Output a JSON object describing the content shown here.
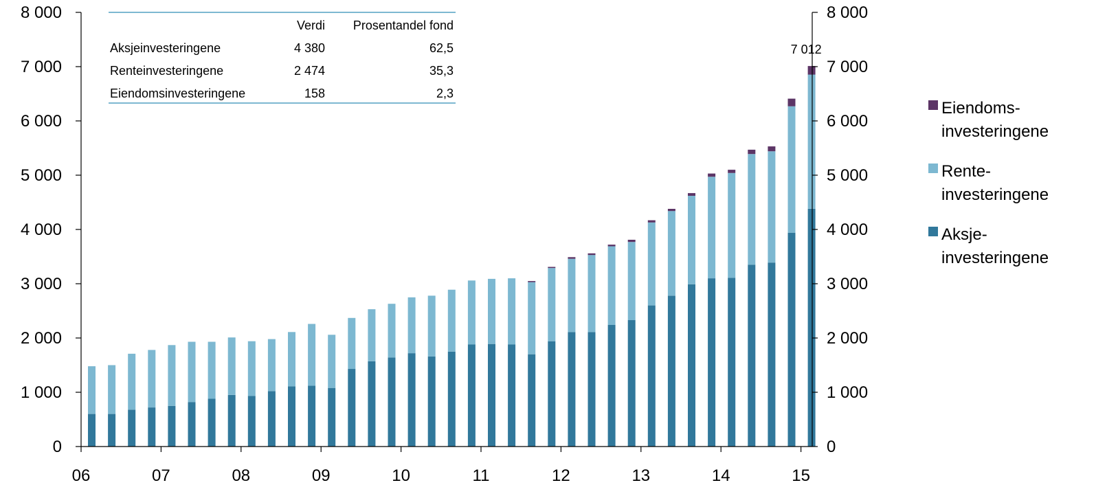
{
  "chart_data": {
    "type": "bar",
    "stacked": true,
    "y_range": [
      0,
      8000
    ],
    "y_ticks": [
      "0",
      "1 000",
      "2 000",
      "3 000",
      "4 000",
      "5 000",
      "6 000",
      "7 000",
      "8 000"
    ],
    "y_right_ticks": [
      "0",
      "1 000",
      "2 000",
      "3 000",
      "4 000",
      "5 000",
      "6 000",
      "7 000",
      "8 000"
    ],
    "x_tick_labels": [
      "06",
      "07",
      "08",
      "09",
      "10",
      "11",
      "12",
      "13",
      "14",
      "15"
    ],
    "x_tick_positions_in_quarters": [
      0,
      4,
      8,
      12,
      16,
      20,
      24,
      28,
      32,
      36
    ],
    "grid": false,
    "legend_position": "right",
    "colors": {
      "aksje": "#31789B",
      "rente": "#7DB8D1",
      "eiendom": "#5C3566",
      "table_rule": "#7DB8D1"
    },
    "series": [
      {
        "key": "aksje",
        "values": [
          600,
          600,
          680,
          720,
          750,
          820,
          880,
          950,
          930,
          1020,
          1110,
          1120,
          1080,
          1430,
          1570,
          1640,
          1720,
          1660,
          1750,
          1880,
          1890,
          1880,
          1700,
          1940,
          2110,
          2110,
          2240,
          2330,
          2600,
          2780,
          2990,
          3100,
          3110,
          3350,
          3390,
          3940,
          4380
        ]
      },
      {
        "key": "rente",
        "values": [
          880,
          900,
          1030,
          1060,
          1120,
          1110,
          1050,
          1060,
          1010,
          960,
          1000,
          1140,
          980,
          940,
          960,
          990,
          1030,
          1120,
          1140,
          1180,
          1200,
          1220,
          1330,
          1350,
          1350,
          1420,
          1450,
          1440,
          1530,
          1560,
          1630,
          1870,
          1930,
          2040,
          2050,
          2330,
          2474
        ]
      },
      {
        "key": "eiendom",
        "values": [
          0,
          0,
          0,
          0,
          0,
          0,
          0,
          0,
          0,
          0,
          0,
          0,
          0,
          0,
          0,
          0,
          0,
          0,
          0,
          0,
          0,
          0,
          20,
          20,
          30,
          30,
          30,
          40,
          40,
          40,
          50,
          60,
          60,
          80,
          90,
          140,
          158
        ]
      }
    ],
    "last_bar_label": "7 012",
    "legend": [
      {
        "key": "eiendom",
        "lines": [
          "Eiendoms-",
          "investeringene"
        ]
      },
      {
        "key": "rente",
        "lines": [
          "Rente-",
          "investeringene"
        ]
      },
      {
        "key": "aksje",
        "lines": [
          "Aksje-",
          "investeringene"
        ]
      }
    ],
    "table": {
      "headers": [
        "",
        "Verdi",
        "Prosentandel fond"
      ],
      "rows": [
        [
          "Aksjeinvesteringene",
          "4 380",
          "62,5"
        ],
        [
          "Renteinvesteringene",
          "2 474",
          "35,3"
        ],
        [
          "Eiendomsinvesteringene",
          "158",
          "2,3"
        ]
      ]
    }
  }
}
